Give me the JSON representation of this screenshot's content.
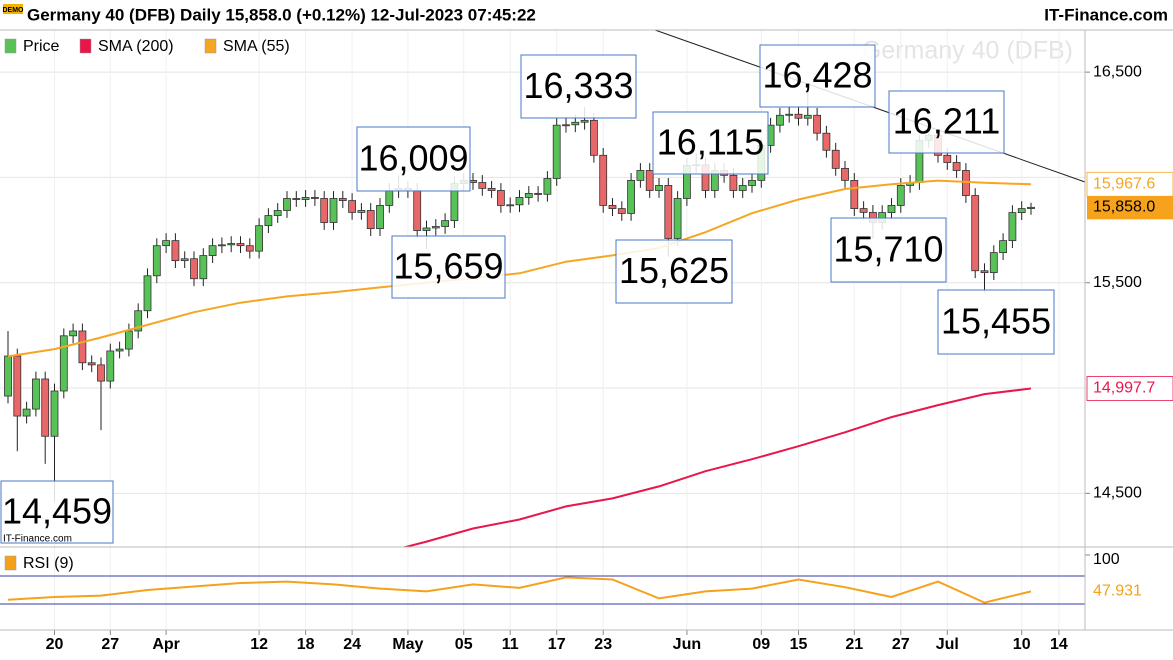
{
  "title": "Germany 40 (DFB) Daily 15,858.0 (+0.12%) 12-Jul-2023 07:45:22",
  "site": "IT-Finance.com",
  "badge": "DEMO",
  "chart_data": [
    {
      "type": "candlestick",
      "watermark": "Germany 40 (DFB)",
      "credit": "IT-Finance.com",
      "categories": [
        null,
        null,
        null,
        null,
        null,
        "20",
        null,
        null,
        null,
        null,
        null,
        "27",
        null,
        null,
        null,
        null,
        null,
        "Apr",
        null,
        null,
        null,
        null,
        null,
        null,
        null,
        null,
        null,
        "12",
        null,
        null,
        null,
        null,
        "18",
        null,
        null,
        null,
        null,
        "24",
        null,
        null,
        null,
        null,
        null,
        "May",
        null,
        null,
        null,
        null,
        null,
        "05",
        null,
        null,
        null,
        null,
        "11",
        null,
        null,
        null,
        null,
        "17",
        null,
        null,
        null,
        null,
        "23",
        null,
        null,
        null,
        null,
        null,
        null,
        null,
        null,
        "Jun",
        null,
        null,
        null,
        null,
        null,
        null,
        null,
        "09",
        null,
        null,
        null,
        "15",
        null,
        null,
        null,
        null,
        null,
        "21",
        null,
        null,
        null,
        null,
        "27",
        null,
        null,
        null,
        null,
        "Jul",
        null,
        null,
        null,
        null,
        null,
        null,
        null,
        "10",
        null,
        null,
        null,
        "14",
        null,
        null
      ],
      "series": [
        {
          "name": "Price",
          "color_up": "#58c258",
          "color_down": "#e8686a",
          "last_label": "15,858.0",
          "open": [
            14962,
            15152,
            14867,
            14900,
            15043,
            14771,
            14986,
            15248,
            15271,
            15120,
            15110,
            15033,
            15176,
            15185,
            15271,
            15367,
            15533,
            15676,
            15700,
            15605,
            15614,
            15519,
            15629,
            15676,
            15680,
            15686,
            15676,
            15650,
            15771,
            15819,
            15843,
            15900,
            15895,
            15905,
            15900,
            15786,
            15900,
            15890,
            15834,
            15843,
            15757,
            15867,
            15938,
            15948,
            15938,
            15748,
            15760,
            15767,
            15795,
            15971,
            15986,
            15976,
            15948,
            15938,
            15867,
            15870,
            15905,
            15924,
            15920,
            15995,
            16248,
            16250,
            16262,
            16271,
            16105,
            15867,
            15852,
            15829,
            15986,
            16033,
            15938,
            15962,
            15710,
            15900,
            16057,
            16060,
            15938,
            16033,
            16010,
            15938,
            15962,
            15986,
            16152,
            16248,
            16295,
            16300,
            16281,
            16295,
            16210,
            16129,
            16043,
            15986,
            15852,
            15834,
            15786,
            15833,
            15867,
            15962,
            15976,
            16176,
            16200,
            16105,
            16071,
            16033,
            15914,
            15557,
            15548,
            15643,
            15700,
            15833,
            15852,
            null,
            null,
            null,
            null,
            null
          ],
          "high": [
            15270,
            15187,
            14935,
            15078,
            15078,
            15021,
            15283,
            15306,
            15306,
            15155,
            15145,
            15211,
            15220,
            15306,
            15402,
            15568,
            15711,
            15735,
            15735,
            15649,
            15649,
            15664,
            15711,
            15715,
            15721,
            15721,
            15711,
            15806,
            15854,
            15878,
            15935,
            15935,
            15940,
            15940,
            15935,
            15935,
            15935,
            15925,
            15878,
            15878,
            15902,
            15973,
            16009,
            15983,
            15973,
            15795,
            15802,
            15830,
            16006,
            16021,
            16021,
            16011,
            15983,
            15973,
            15905,
            15940,
            15959,
            15959,
            16030,
            16283,
            16285,
            16297,
            16333,
            16306,
            16140,
            15902,
            15887,
            16021,
            16068,
            16068,
            15997,
            15997,
            15935,
            16092,
            16115,
            16095,
            16068,
            16068,
            16045,
            15997,
            16021,
            16187,
            16283,
            16330,
            16335,
            16335,
            16428,
            16330,
            16245,
            16164,
            16078,
            16021,
            15887,
            15869,
            15868,
            15902,
            15997,
            16011,
            16200,
            16211,
            16205,
            16140,
            16106,
            16068,
            15949,
            15592,
            15678,
            15735,
            15868,
            15887,
            15880,
            null,
            null,
            null,
            null,
            null
          ],
          "low": [
            14927,
            14700,
            14832,
            14865,
            14640,
            14459,
            14951,
            15213,
            15085,
            15075,
            14800,
            14998,
            15141,
            15150,
            15236,
            15332,
            15498,
            15641,
            15570,
            15570,
            15484,
            15484,
            15594,
            15641,
            15645,
            15641,
            15615,
            15615,
            15736,
            15784,
            15808,
            15860,
            15860,
            15865,
            15751,
            15751,
            15855,
            15799,
            15799,
            15722,
            15722,
            15832,
            15903,
            15903,
            15713,
            15659,
            15725,
            15732,
            15760,
            15936,
            15941,
            15913,
            15903,
            15832,
            15832,
            15835,
            15870,
            15885,
            15885,
            15960,
            16213,
            16215,
            16227,
            16070,
            15832,
            15817,
            15794,
            15794,
            15951,
            15903,
            15903,
            15625,
            15675,
            15865,
            16022,
            15903,
            15903,
            15975,
            15903,
            15903,
            15927,
            15951,
            16117,
            16213,
            16260,
            16246,
            16246,
            16175,
            16094,
            16008,
            15951,
            15817,
            15799,
            15710,
            15751,
            15798,
            15832,
            15927,
            15941,
            16141,
            16070,
            16036,
            15998,
            15879,
            15522,
            15455,
            15513,
            15608,
            15665,
            15798,
            15823,
            null,
            null,
            null,
            null,
            null
          ],
          "close": [
            15152,
            14867,
            14900,
            15043,
            14771,
            14986,
            15248,
            15271,
            15120,
            15110,
            15033,
            15176,
            15185,
            15271,
            15367,
            15533,
            15676,
            15700,
            15605,
            15614,
            15519,
            15629,
            15676,
            15680,
            15686,
            15676,
            15650,
            15771,
            15819,
            15843,
            15900,
            15895,
            15905,
            15900,
            15786,
            15900,
            15890,
            15834,
            15843,
            15757,
            15867,
            15938,
            15948,
            15938,
            15748,
            15760,
            15767,
            15795,
            15971,
            15986,
            15976,
            15948,
            15938,
            15867,
            15870,
            15905,
            15924,
            15920,
            15995,
            16248,
            16250,
            16262,
            16271,
            16105,
            15867,
            15852,
            15829,
            15986,
            16033,
            15938,
            15962,
            15710,
            15900,
            16057,
            16060,
            15938,
            16033,
            16010,
            15938,
            15962,
            15986,
            16152,
            16248,
            16295,
            16300,
            16281,
            16295,
            16210,
            16129,
            16043,
            15986,
            15852,
            15834,
            15786,
            15833,
            15867,
            15962,
            15976,
            16176,
            16200,
            16105,
            16071,
            16033,
            15914,
            15557,
            15548,
            15643,
            15700,
            15833,
            15852,
            15858,
            null,
            null,
            null,
            null,
            null
          ]
        },
        {
          "name": "SMA (200)",
          "type": "line",
          "color": "#e8174a",
          "last_label": "14,997.7",
          "x": [
            40,
            45,
            50,
            55,
            60,
            65,
            70,
            75,
            80,
            85,
            90,
            95,
            100,
            105,
            110
          ],
          "values": [
            14214,
            14271,
            14333,
            14376,
            14438,
            14476,
            14533,
            14605,
            14662,
            14724,
            14790,
            14862,
            14919,
            14971,
            14997.7
          ]
        },
        {
          "name": "SMA (55)",
          "type": "line",
          "color": "#f5a623",
          "last_label": "15,967.6",
          "x": [
            0,
            5,
            10,
            15,
            20,
            25,
            30,
            35,
            40,
            45,
            50,
            55,
            60,
            65,
            70,
            75,
            80,
            85,
            90,
            95,
            100,
            105,
            110
          ],
          "values": [
            15150,
            15185,
            15240,
            15300,
            15360,
            15405,
            15435,
            15455,
            15478,
            15500,
            15522,
            15545,
            15600,
            15630,
            15665,
            15740,
            15830,
            15895,
            15945,
            15968,
            15985,
            15975,
            15967.6
          ]
        }
      ],
      "ylim": [
        14250,
        16700
      ],
      "yticks": [
        {
          "value": 14500,
          "label": "14,500"
        },
        {
          "value": 15500,
          "label": "15,500"
        },
        {
          "value": 16500,
          "label": "16,500"
        }
      ],
      "grid_values": [
        15000,
        16000
      ],
      "annotations": [
        "14,459",
        "16,009",
        "15,659",
        "16,333",
        "16,115",
        "15,625",
        "16,428",
        "15,710",
        "16,211",
        "15,455"
      ]
    },
    {
      "type": "line",
      "series": [
        {
          "name": "RSI (9)",
          "color": "#f5a11c",
          "last_label": "47.931",
          "x": [
            0,
            5,
            10,
            15,
            20,
            25,
            30,
            35,
            40,
            45,
            50,
            55,
            60,
            65,
            70,
            75,
            80,
            85,
            90,
            95,
            100,
            105,
            110
          ],
          "values": [
            36,
            40,
            42,
            50,
            55,
            60,
            62,
            58,
            52,
            48,
            58,
            53,
            68,
            65,
            38,
            48,
            52,
            65,
            54,
            40,
            62,
            32,
            47.931
          ]
        }
      ],
      "ylim": [
        0,
        100
      ],
      "yticks": [
        100
      ],
      "levels": [
        30,
        70
      ],
      "level_color": "#3a3aa8"
    }
  ]
}
